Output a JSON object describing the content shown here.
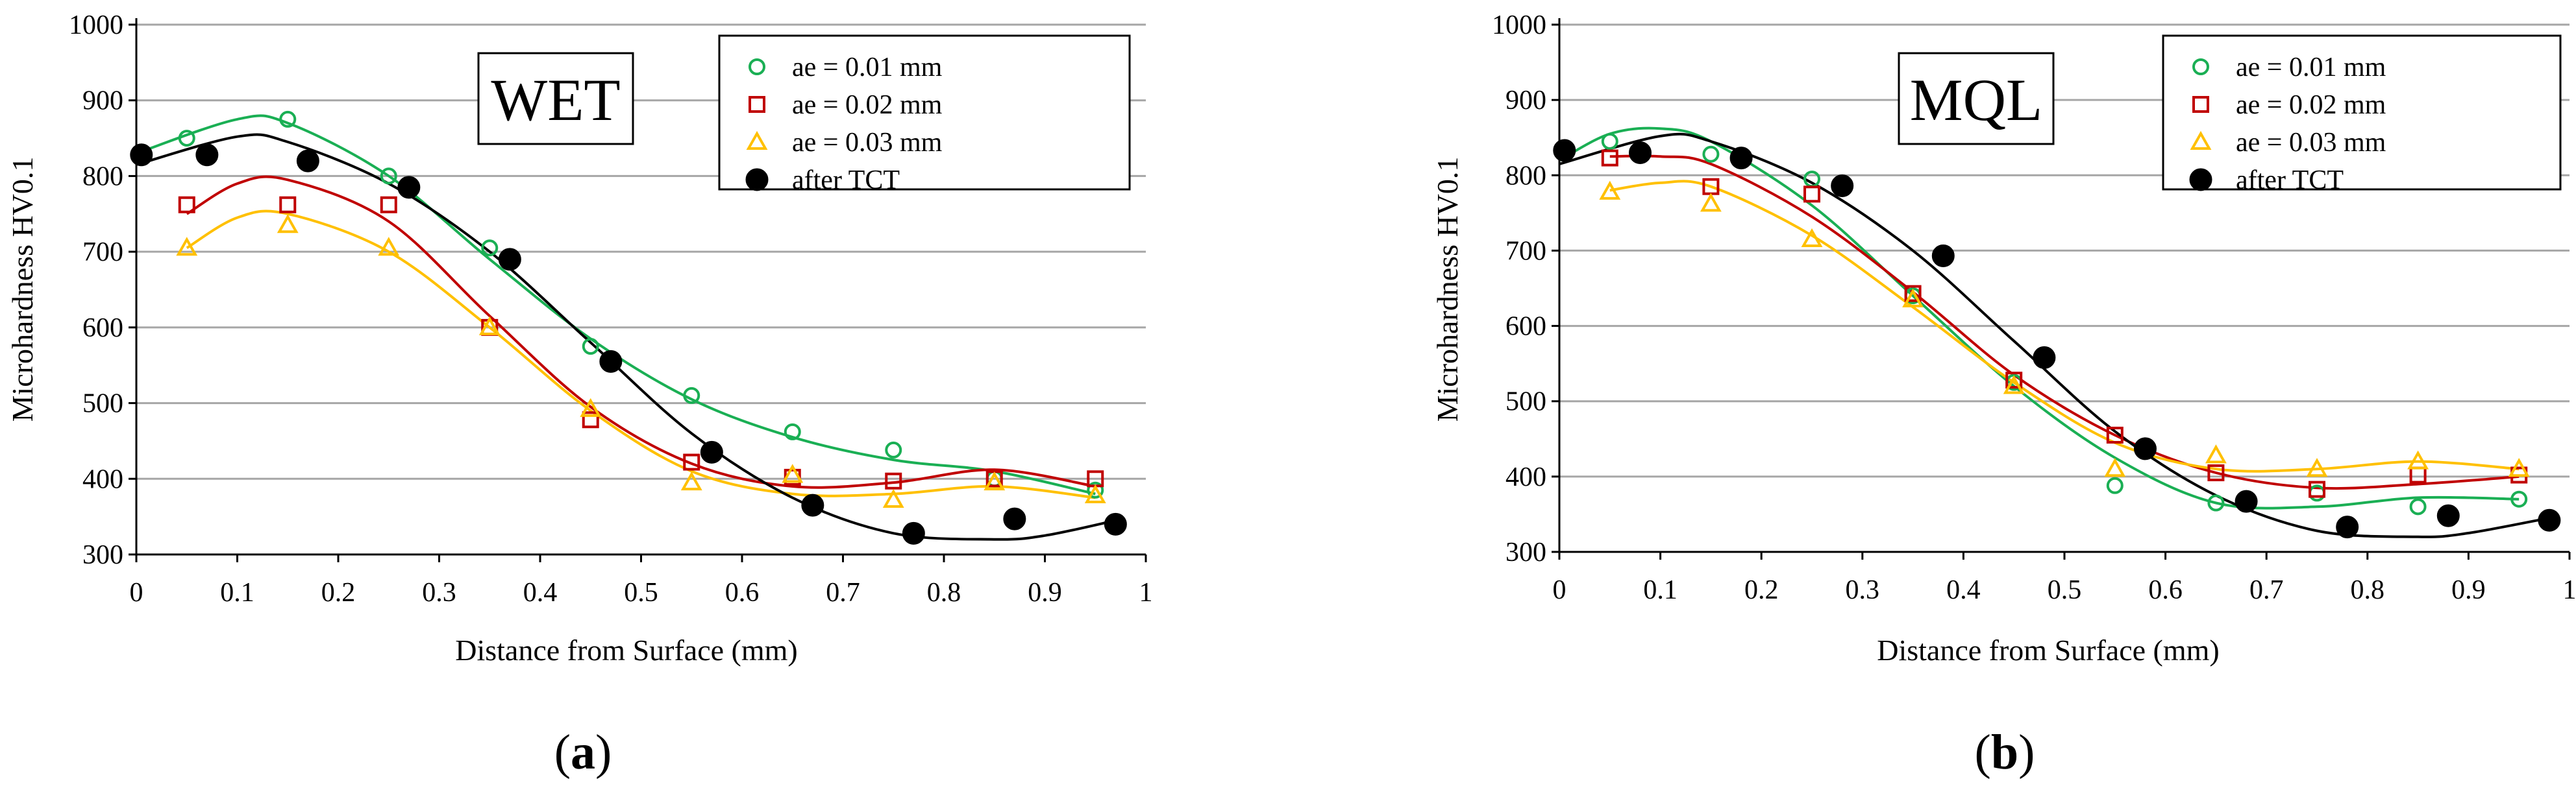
{
  "chart_data": [
    {
      "type": "scatter",
      "panel": "(a)",
      "panel_letter": "a",
      "tag": "WET",
      "title": "",
      "xlabel": "Distance from Surface (mm)",
      "ylabel": "Microhardness HV0.1",
      "xlim": [
        0,
        1
      ],
      "ylim": [
        300,
        1000
      ],
      "xticks": [
        "0",
        "0.1",
        "0.2",
        "0.3",
        "0.4",
        "0.5",
        "0.6",
        "0.7",
        "0.8",
        "0.9",
        "1"
      ],
      "yticks": [
        "300",
        "400",
        "500",
        "600",
        "700",
        "800",
        "900",
        "1000"
      ],
      "grid": "horizontal",
      "legend_position": "top-right",
      "series": [
        {
          "name": "ae = 0.01 mm",
          "marker": "circle-open",
          "color": "#1aaf54",
          "x": [
            0.05,
            0.15,
            0.25,
            0.35,
            0.45,
            0.55,
            0.65,
            0.75,
            0.85,
            0.95
          ],
          "y": [
            850,
            875,
            800,
            705,
            575,
            510,
            462,
            438,
            400,
            385
          ],
          "trend_x": [
            0,
            0.1,
            0.15,
            0.25,
            0.35,
            0.45,
            0.55,
            0.65,
            0.75,
            0.85,
            0.95
          ],
          "trend_y": [
            830,
            875,
            870,
            800,
            690,
            585,
            505,
            455,
            425,
            410,
            380
          ]
        },
        {
          "name": "ae = 0.02 mm",
          "marker": "square-open",
          "color": "#c00000",
          "x": [
            0.05,
            0.15,
            0.25,
            0.35,
            0.45,
            0.55,
            0.65,
            0.75,
            0.85,
            0.95
          ],
          "y": [
            762,
            762,
            762,
            600,
            478,
            422,
            402,
            397,
            400,
            400
          ],
          "trend_x": [
            0.05,
            0.1,
            0.15,
            0.25,
            0.35,
            0.45,
            0.55,
            0.65,
            0.75,
            0.85,
            0.95
          ],
          "trend_y": [
            750,
            790,
            795,
            740,
            615,
            495,
            420,
            390,
            395,
            412,
            390
          ]
        },
        {
          "name": "ae = 0.03 mm",
          "marker": "triangle-open",
          "color": "#ffc000",
          "x": [
            0.05,
            0.15,
            0.25,
            0.35,
            0.45,
            0.55,
            0.65,
            0.75,
            0.85,
            0.95
          ],
          "y": [
            705,
            735,
            705,
            600,
            492,
            395,
            405,
            372,
            395,
            378
          ],
          "trend_x": [
            0.05,
            0.1,
            0.15,
            0.25,
            0.35,
            0.45,
            0.55,
            0.65,
            0.75,
            0.85,
            0.95
          ],
          "trend_y": [
            705,
            745,
            750,
            700,
            600,
            490,
            410,
            380,
            380,
            390,
            375
          ]
        },
        {
          "name": "after TCT",
          "marker": "circle-filled",
          "color": "#000000",
          "x": [
            0.005,
            0.07,
            0.17,
            0.27,
            0.37,
            0.47,
            0.57,
            0.67,
            0.77,
            0.87,
            0.97
          ],
          "y": [
            828,
            828,
            820,
            785,
            690,
            555,
            435,
            365,
            328,
            347,
            340
          ],
          "trend_x": [
            0,
            0.1,
            0.15,
            0.25,
            0.35,
            0.45,
            0.55,
            0.65,
            0.75,
            0.85,
            0.9,
            0.97
          ],
          "trend_y": [
            815,
            852,
            845,
            790,
            700,
            580,
            460,
            375,
            328,
            320,
            325,
            345
          ]
        }
      ]
    },
    {
      "type": "scatter",
      "panel": "(b)",
      "panel_letter": "b",
      "tag": "MQL",
      "title": "",
      "xlabel": "Distance from Surface (mm)",
      "ylabel": "Microhardness HV0.1",
      "xlim": [
        0,
        1
      ],
      "ylim": [
        300,
        1000
      ],
      "xticks": [
        "0",
        "0.1",
        "0.2",
        "0.3",
        "0.4",
        "0.5",
        "0.6",
        "0.7",
        "0.8",
        "0.9",
        "1"
      ],
      "yticks": [
        "300",
        "400",
        "500",
        "600",
        "700",
        "800",
        "900",
        "1000"
      ],
      "grid": "horizontal",
      "legend_position": "top-right",
      "series": [
        {
          "name": "ae = 0.01 mm",
          "marker": "circle-open",
          "color": "#1aaf54",
          "x": [
            0.05,
            0.15,
            0.25,
            0.35,
            0.45,
            0.55,
            0.65,
            0.75,
            0.85,
            0.95
          ],
          "y": [
            845,
            828,
            795,
            640,
            525,
            388,
            365,
            378,
            360,
            370
          ],
          "trend_x": [
            0,
            0.05,
            0.1,
            0.15,
            0.25,
            0.35,
            0.45,
            0.55,
            0.65,
            0.75,
            0.85,
            0.95
          ],
          "trend_y": [
            820,
            855,
            862,
            845,
            760,
            640,
            520,
            425,
            365,
            360,
            372,
            370
          ]
        },
        {
          "name": "ae = 0.02 mm",
          "marker": "square-open",
          "color": "#c00000",
          "x": [
            0.05,
            0.15,
            0.25,
            0.35,
            0.45,
            0.55,
            0.65,
            0.75,
            0.85,
            0.95
          ],
          "y": [
            823,
            785,
            775,
            643,
            528,
            455,
            405,
            383,
            402,
            402
          ],
          "trend_x": [
            0.05,
            0.1,
            0.15,
            0.25,
            0.35,
            0.45,
            0.55,
            0.65,
            0.75,
            0.85,
            0.95
          ],
          "trend_y": [
            825,
            825,
            815,
            745,
            645,
            535,
            455,
            405,
            385,
            390,
            400
          ]
        },
        {
          "name": "ae = 0.03 mm",
          "marker": "triangle-open",
          "color": "#ffc000",
          "x": [
            0.05,
            0.15,
            0.25,
            0.35,
            0.45,
            0.55,
            0.65,
            0.75,
            0.85,
            0.95
          ],
          "y": [
            778,
            762,
            715,
            635,
            520,
            410,
            428,
            410,
            420,
            410
          ],
          "trend_x": [
            0.05,
            0.1,
            0.15,
            0.25,
            0.35,
            0.45,
            0.55,
            0.65,
            0.75,
            0.85,
            0.95
          ],
          "trend_y": [
            780,
            790,
            785,
            720,
            625,
            525,
            445,
            410,
            410,
            420,
            410
          ]
        },
        {
          "name": "after TCT",
          "marker": "circle-filled",
          "color": "#000000",
          "x": [
            0.005,
            0.08,
            0.18,
            0.28,
            0.38,
            0.48,
            0.58,
            0.68,
            0.78,
            0.88,
            0.98
          ],
          "y": [
            833,
            830,
            823,
            786,
            693,
            558,
            437,
            367,
            333,
            348,
            342
          ],
          "trend_x": [
            0,
            0.1,
            0.15,
            0.25,
            0.35,
            0.45,
            0.55,
            0.65,
            0.75,
            0.85,
            0.9,
            0.98
          ],
          "trend_y": [
            815,
            852,
            845,
            790,
            700,
            580,
            460,
            375,
            328,
            320,
            325,
            345
          ]
        }
      ]
    }
  ]
}
